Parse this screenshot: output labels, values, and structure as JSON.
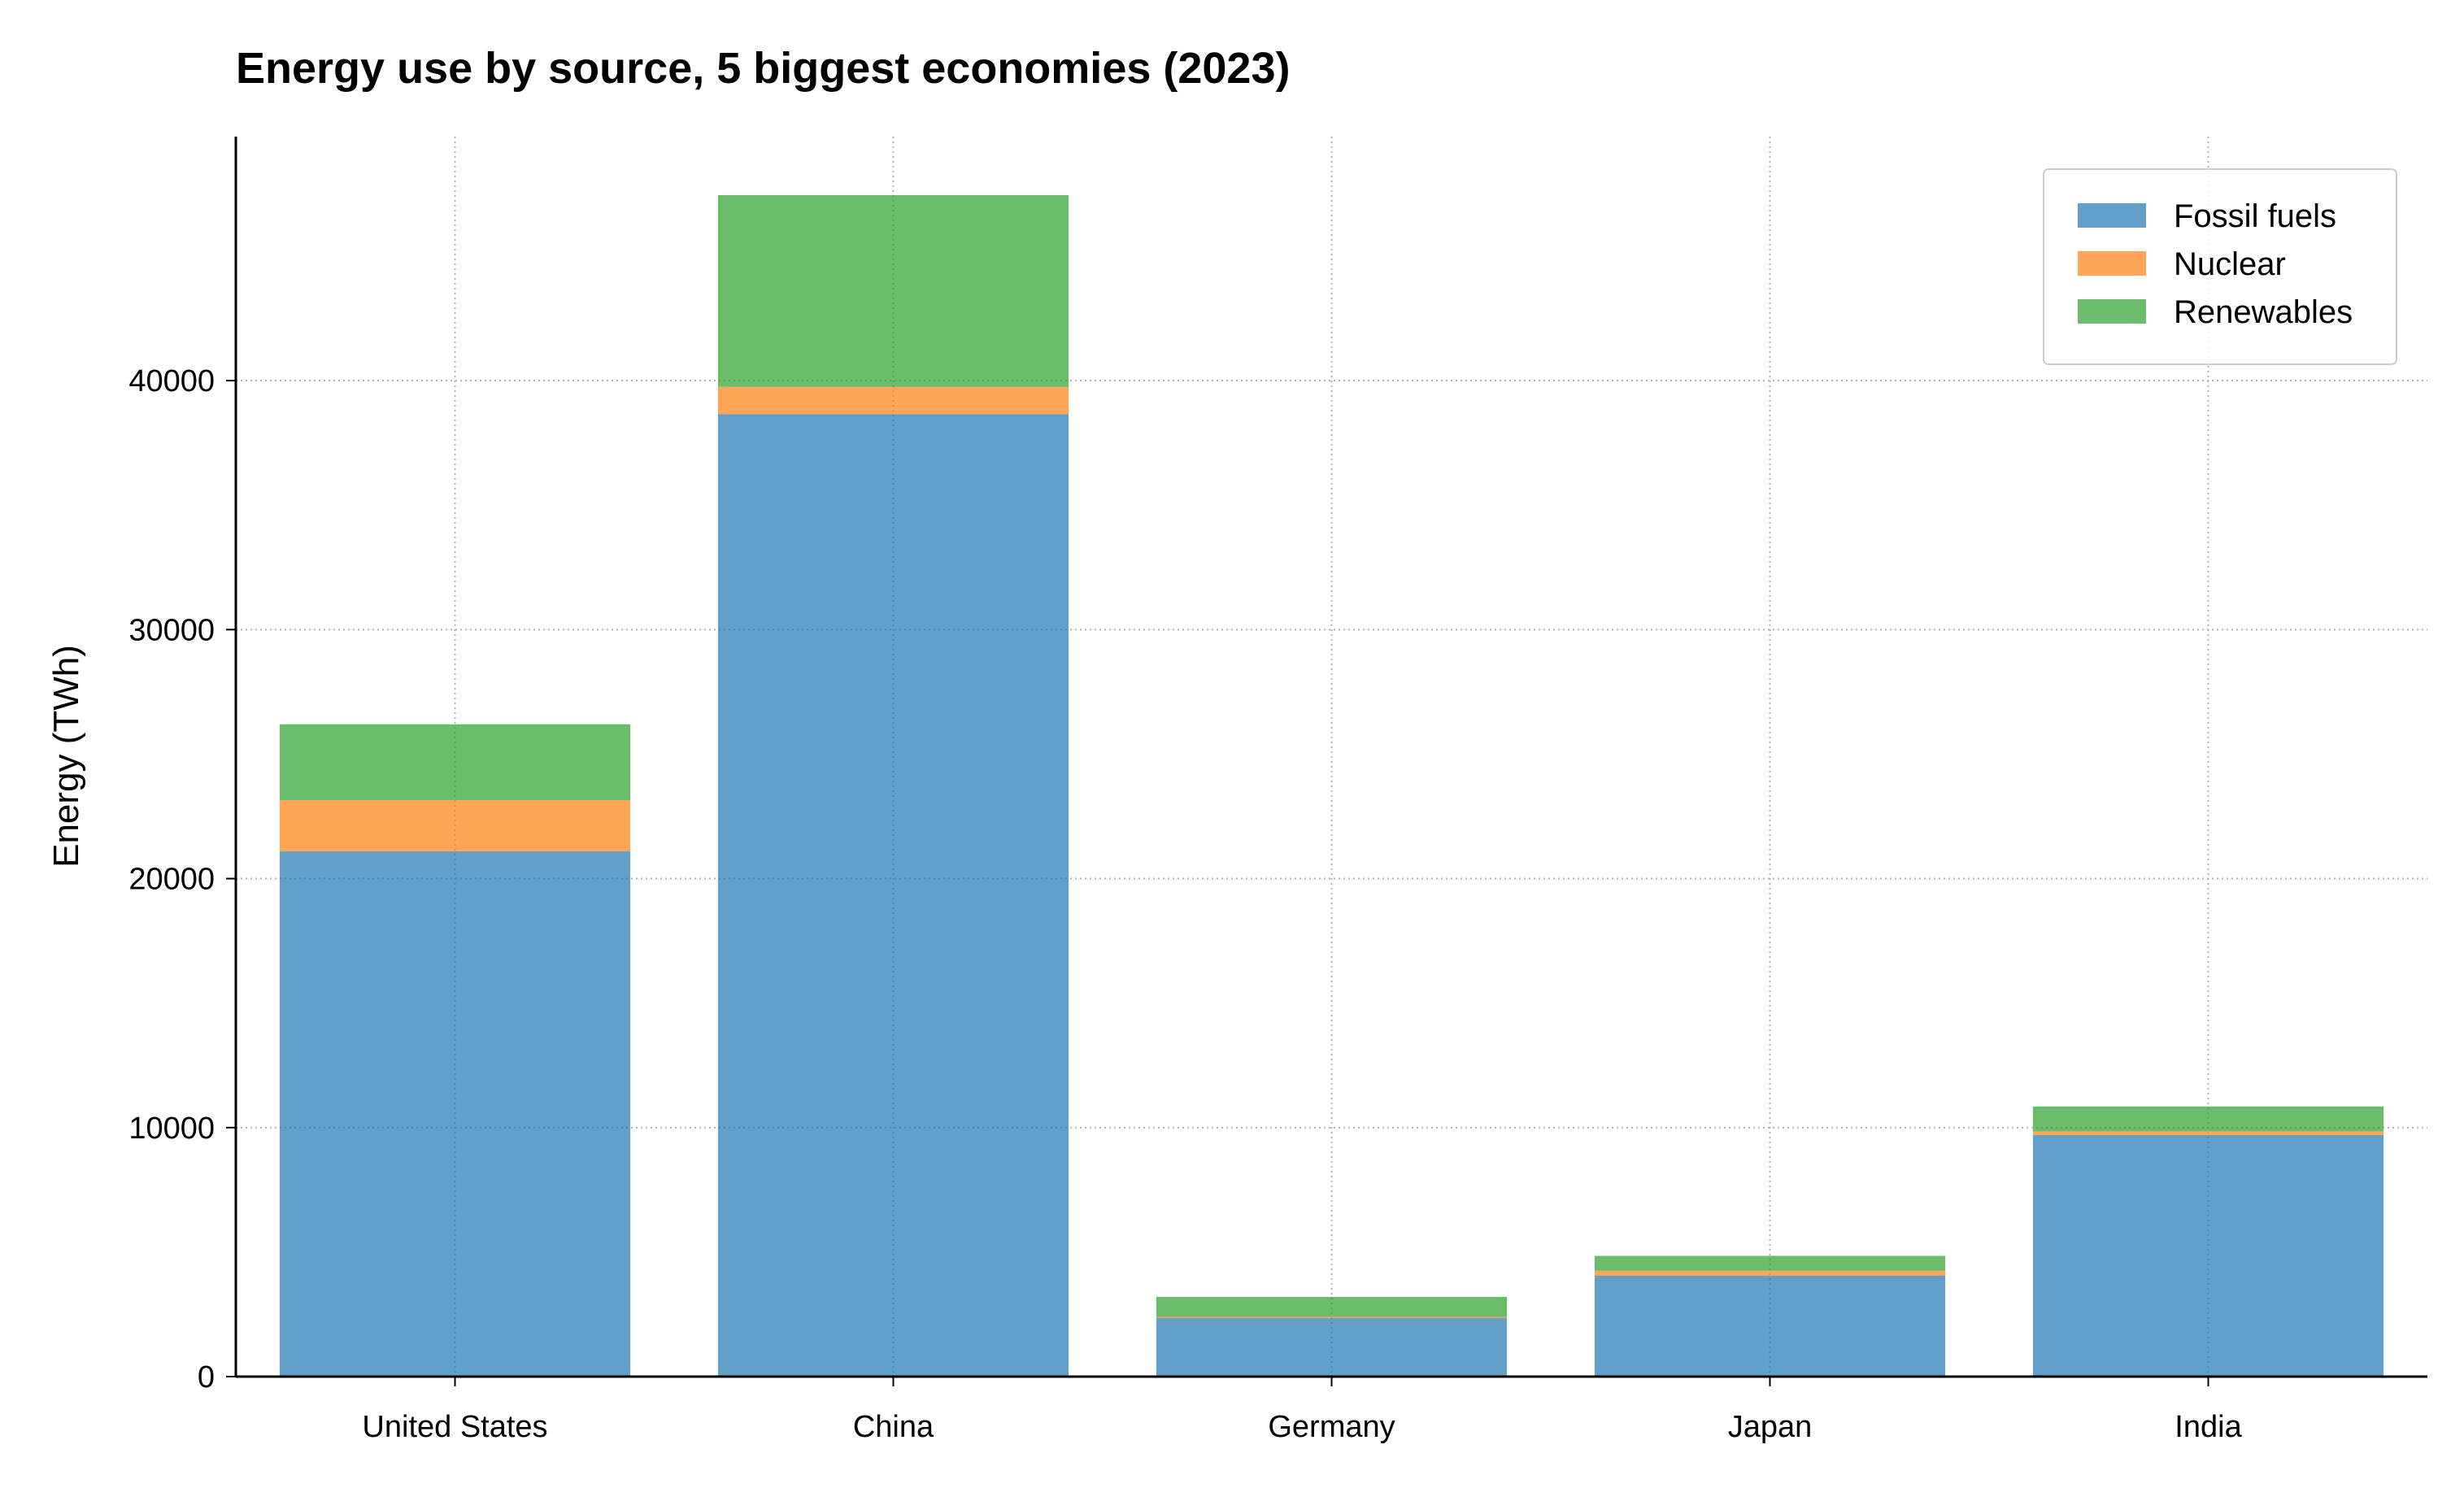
{
  "chart_data": {
    "type": "bar",
    "stacked": true,
    "title": "Energy use by source, 5 biggest economies (2023)",
    "xlabel": "",
    "ylabel": "Energy (TWh)",
    "categories": [
      "United States",
      "China",
      "Germany",
      "Japan",
      "India"
    ],
    "series": [
      {
        "name": "Fossil fuels",
        "color": "#1f77b4",
        "values": [
          21100,
          38650,
          2350,
          4050,
          9700
        ]
      },
      {
        "name": "Nuclear",
        "color": "#ff7f0e",
        "values": [
          2050,
          1100,
          50,
          200,
          150
        ]
      },
      {
        "name": "Renewables",
        "color": "#2ca02c",
        "values": [
          3050,
          7700,
          800,
          600,
          1000
        ]
      }
    ],
    "ylim": [
      0,
      49800
    ],
    "yticks": [
      0,
      10000,
      20000,
      30000,
      40000
    ],
    "grid": true,
    "grid_style": "dotted",
    "bar_opacity": 0.7,
    "legend_position": "top-right"
  }
}
